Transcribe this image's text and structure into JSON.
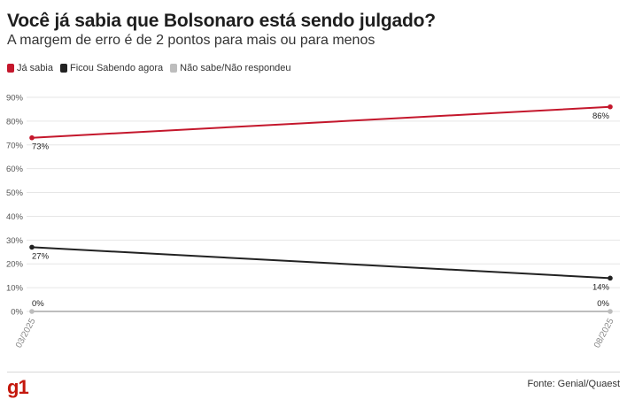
{
  "header": {
    "title": "Você já sabia que Bolsonaro está sendo julgado?",
    "subtitle": "A margem de erro é de 2 pontos para mais ou para menos"
  },
  "footer": {
    "logo": "g1",
    "source": "Fonte: Genial/Quaest"
  },
  "colors": {
    "ja_sabia": "#c4172c",
    "ficou_sabendo": "#222222",
    "nao_sabe": "#bdbdbd"
  },
  "chart_data": {
    "type": "line",
    "title": "Você já sabia que Bolsonaro está sendo julgado?",
    "subtitle": "A margem de erro é de 2 pontos para mais ou para menos",
    "categories": [
      "03/2025",
      "08/2025"
    ],
    "ylim": [
      0,
      90
    ],
    "yticks": [
      "0%",
      "10%",
      "20%",
      "30%",
      "40%",
      "50%",
      "60%",
      "70%",
      "80%",
      "90%"
    ],
    "ytick_values": [
      0,
      10,
      20,
      30,
      40,
      50,
      60,
      70,
      80,
      90
    ],
    "grid": true,
    "legend_position": "top-left",
    "series": [
      {
        "name": "Já sabia",
        "color": "#c4172c",
        "values": [
          73,
          86
        ],
        "labels": [
          "73%",
          "86%"
        ]
      },
      {
        "name": "Ficou Sabendo agora",
        "color": "#222222",
        "values": [
          27,
          14
        ],
        "labels": [
          "27%",
          "14%"
        ]
      },
      {
        "name": "Não sabe/Não respondeu",
        "color": "#bdbdbd",
        "values": [
          0,
          0
        ],
        "labels": [
          "0%",
          "0%"
        ]
      }
    ]
  }
}
